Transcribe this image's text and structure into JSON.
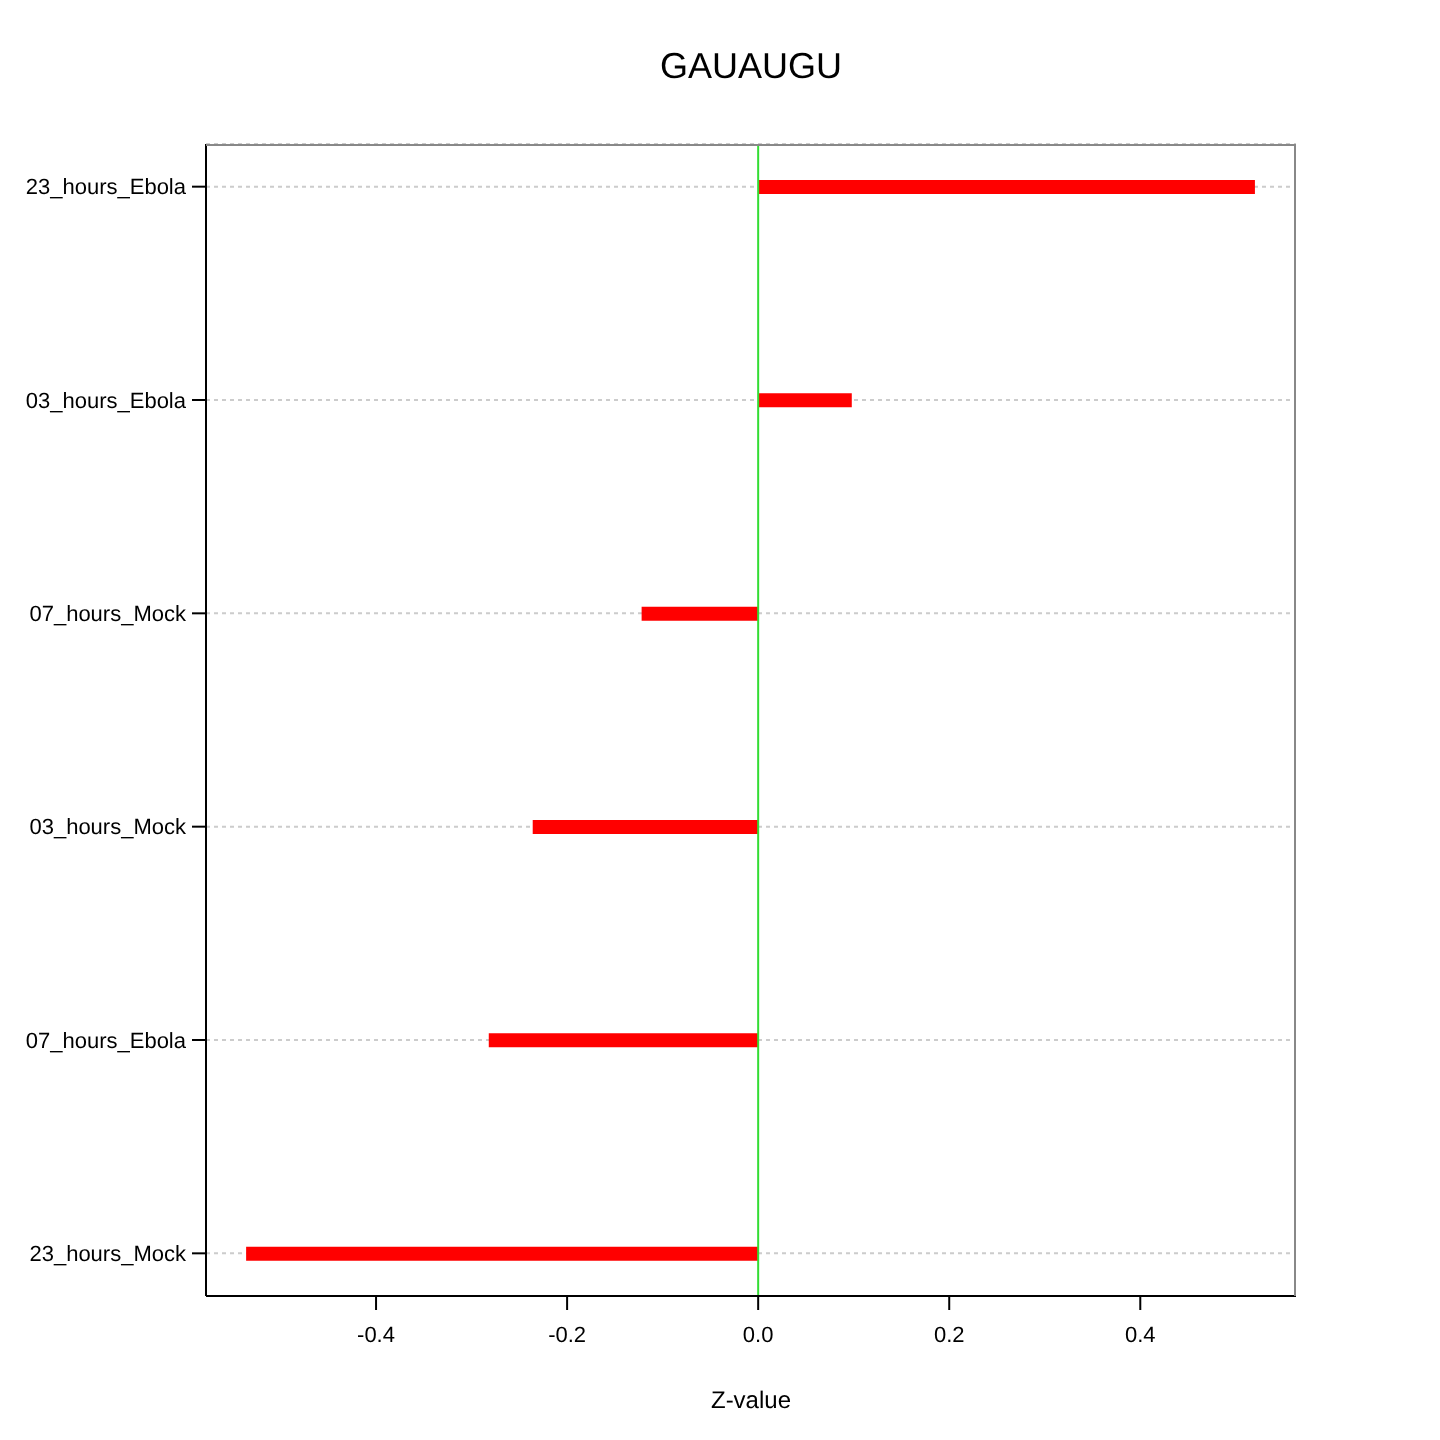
{
  "chart_data": {
    "type": "bar",
    "orientation": "horizontal",
    "title": "GAUAUGU",
    "xlabel": "Z-value",
    "categories": [
      "23_hours_Ebola",
      "03_hours_Ebola",
      "07_hours_Mock",
      "03_hours_Mock",
      "07_hours_Ebola",
      "23_hours_Mock"
    ],
    "values": [
      0.52,
      0.098,
      -0.122,
      -0.236,
      -0.282,
      -0.536
    ],
    "color": "#ff0000",
    "xlim": [
      -0.578,
      0.563
    ],
    "xticks": [
      -0.4,
      -0.2,
      {
        "value": 0,
        "label": "0.0"
      },
      0.2,
      0.4
    ],
    "grid": "y",
    "ref_lines": [
      {
        "axis": "x",
        "value": 0,
        "color": "#33dd33"
      }
    ]
  }
}
